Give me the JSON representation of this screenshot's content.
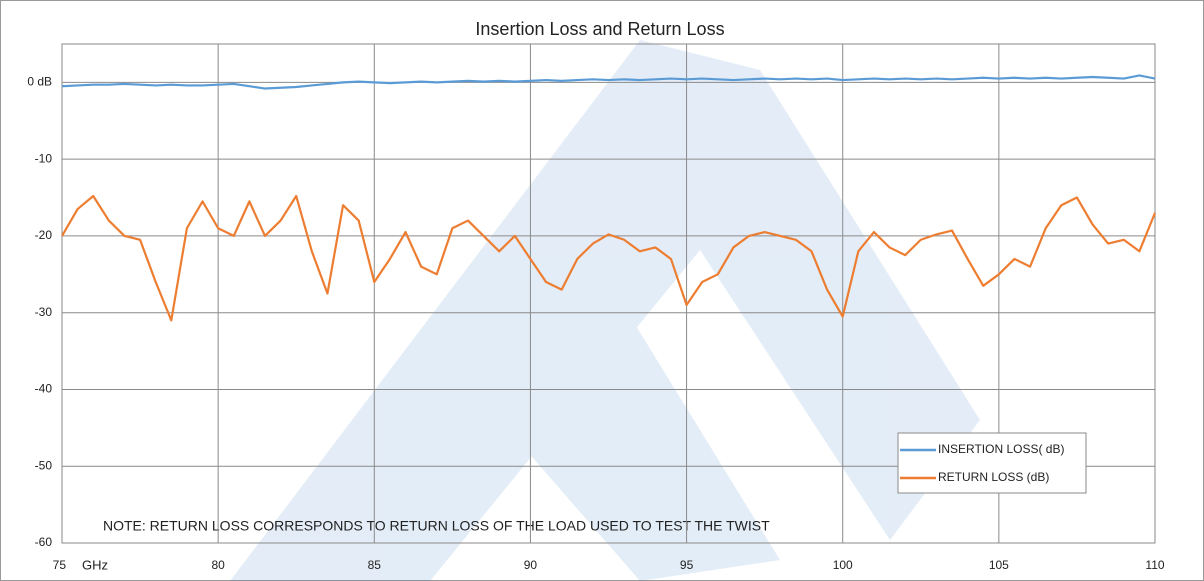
{
  "chart_data": {
    "type": "line",
    "title": "Insertion Loss and Return Loss",
    "x_label": "GHz",
    "annotation": "NOTE:  RETURN LOSS CORRESPONDS TO RETURN LOSS OF THE LOAD USED TO TEST THE TWIST",
    "x": [
      75,
      75.5,
      76,
      76.5,
      77,
      77.5,
      78,
      78.5,
      79,
      79.5,
      80,
      80.5,
      81,
      81.5,
      82,
      82.5,
      83,
      83.5,
      84,
      84.5,
      85,
      85.5,
      86,
      86.5,
      87,
      87.5,
      88,
      88.5,
      89,
      89.5,
      90,
      90.5,
      91,
      91.5,
      92,
      92.5,
      93,
      93.5,
      94,
      94.5,
      95,
      95.5,
      96,
      96.5,
      97,
      97.5,
      98,
      98.5,
      99,
      99.5,
      100,
      100.5,
      101,
      101.5,
      102,
      102.5,
      103,
      103.5,
      104,
      104.5,
      105,
      105.5,
      106,
      106.5,
      107,
      107.5,
      108,
      108.5,
      109,
      109.5,
      110
    ],
    "series": [
      {
        "name": "INSERTION LOSS( dB)",
        "color": "#5b9bd5",
        "values": [
          -0.5,
          -0.4,
          -0.3,
          -0.3,
          -0.2,
          -0.3,
          -0.4,
          -0.3,
          -0.4,
          -0.4,
          -0.3,
          -0.2,
          -0.5,
          -0.8,
          -0.7,
          -0.6,
          -0.4,
          -0.2,
          0,
          0.1,
          0,
          -0.1,
          0,
          0.1,
          0,
          0.1,
          0.2,
          0.1,
          0.2,
          0.1,
          0.2,
          0.3,
          0.2,
          0.3,
          0.4,
          0.3,
          0.4,
          0.3,
          0.4,
          0.5,
          0.4,
          0.5,
          0.4,
          0.3,
          0.4,
          0.5,
          0.4,
          0.5,
          0.4,
          0.5,
          0.3,
          0.4,
          0.5,
          0.4,
          0.5,
          0.4,
          0.5,
          0.4,
          0.5,
          0.6,
          0.5,
          0.6,
          0.5,
          0.6,
          0.5,
          0.6,
          0.7,
          0.6,
          0.5,
          0.9,
          0.5
        ]
      },
      {
        "name": "RETURN LOSS (dB)",
        "color": "#ed7d31",
        "values": [
          -20,
          -16.5,
          -14.8,
          -18,
          -20,
          -20.5,
          -26,
          -31,
          -19,
          -15.5,
          -19,
          -20,
          -15.5,
          -20,
          -18,
          -14.8,
          -22,
          -27.5,
          -16,
          -18,
          -26,
          -23,
          -19.5,
          -24,
          -25,
          -19,
          -18,
          -20,
          -22,
          -20,
          -23,
          -26,
          -27,
          -23,
          -21,
          -19.8,
          -20.5,
          -22,
          -21.5,
          -23,
          -29,
          -26,
          -25,
          -21.5,
          -20,
          -19.5,
          -20,
          -20.5,
          -22,
          -27,
          -30.5,
          -22,
          -19.5,
          -21.5,
          -22.5,
          -20.5,
          -19.8,
          -19.3,
          -23,
          -26.5,
          -25,
          -23,
          -24,
          -19,
          -16,
          -15,
          -18.5,
          -21,
          -20.5,
          -22,
          -17
        ]
      }
    ],
    "xlim": [
      75,
      110
    ],
    "xticks": [
      75,
      80,
      85,
      90,
      95,
      100,
      105,
      110
    ],
    "ylim": [
      -60,
      5
    ],
    "yticks": [
      -60,
      -50,
      -40,
      -30,
      -20,
      -10,
      {
        "value": 0,
        "label": "0 dB"
      }
    ],
    "grid": true,
    "legend": "lower right"
  }
}
